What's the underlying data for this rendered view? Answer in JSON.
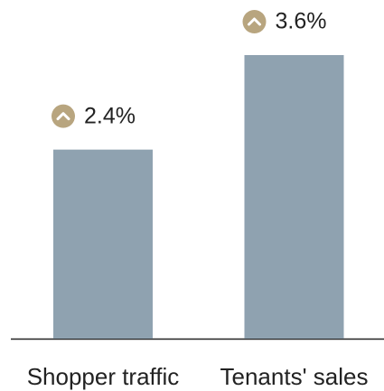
{
  "chart_data": {
    "type": "bar",
    "categories": [
      "Shopper traffic",
      "Tenants' sales"
    ],
    "values": [
      2.4,
      3.6
    ],
    "value_labels": [
      "2.4%",
      "3.6%"
    ],
    "color": "#8fa2b0"
  }
}
